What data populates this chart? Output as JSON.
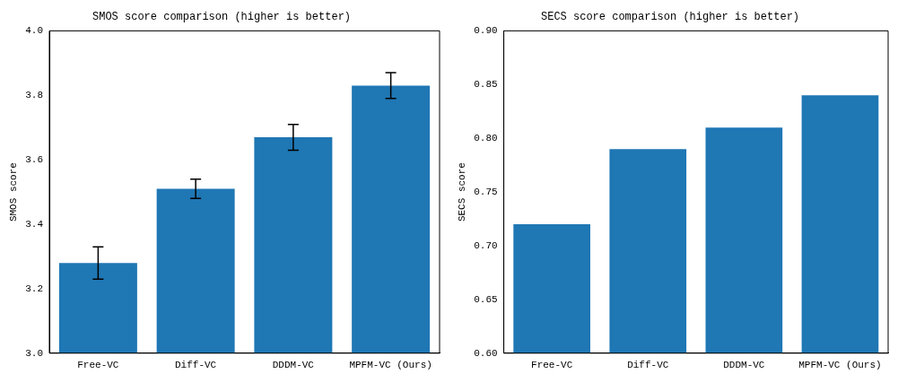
{
  "chart_data": [
    {
      "type": "bar",
      "title": "SMOS score comparison (higher is better)",
      "ylabel": "SMOS score",
      "categories": [
        "Free-VC",
        "Diff-VC",
        "DDDM-VC",
        "MPFM-VC (Ours)"
      ],
      "values": [
        3.28,
        3.51,
        3.67,
        3.83
      ],
      "errors": [
        0.05,
        0.03,
        0.04,
        0.04
      ],
      "color": "#1f77b4",
      "ylim": [
        3.0,
        4.0
      ],
      "yticks": [
        {
          "value": 3.0,
          "label": "3.0"
        },
        3.2,
        3.4,
        3.6,
        3.8,
        {
          "value": 4.0,
          "label": "4.0"
        }
      ],
      "grid": false
    },
    {
      "type": "bar",
      "title": "SECS score comparison (higher is better)",
      "ylabel": "SECS score",
      "categories": [
        "Free-VC",
        "Diff-VC",
        "DDDM-VC",
        "MPFM-VC (Ours)"
      ],
      "values": [
        0.72,
        0.79,
        0.81,
        0.84
      ],
      "color": "#1f77b4",
      "ylim": [
        0.6,
        0.9
      ],
      "yticks": [
        {
          "value": 0.6,
          "label": "0.60"
        },
        0.65,
        {
          "value": 0.7,
          "label": "0.70"
        },
        0.75,
        {
          "value": 0.8,
          "label": "0.80"
        },
        0.85,
        {
          "value": 0.9,
          "label": "0.90"
        }
      ],
      "grid": false
    }
  ]
}
